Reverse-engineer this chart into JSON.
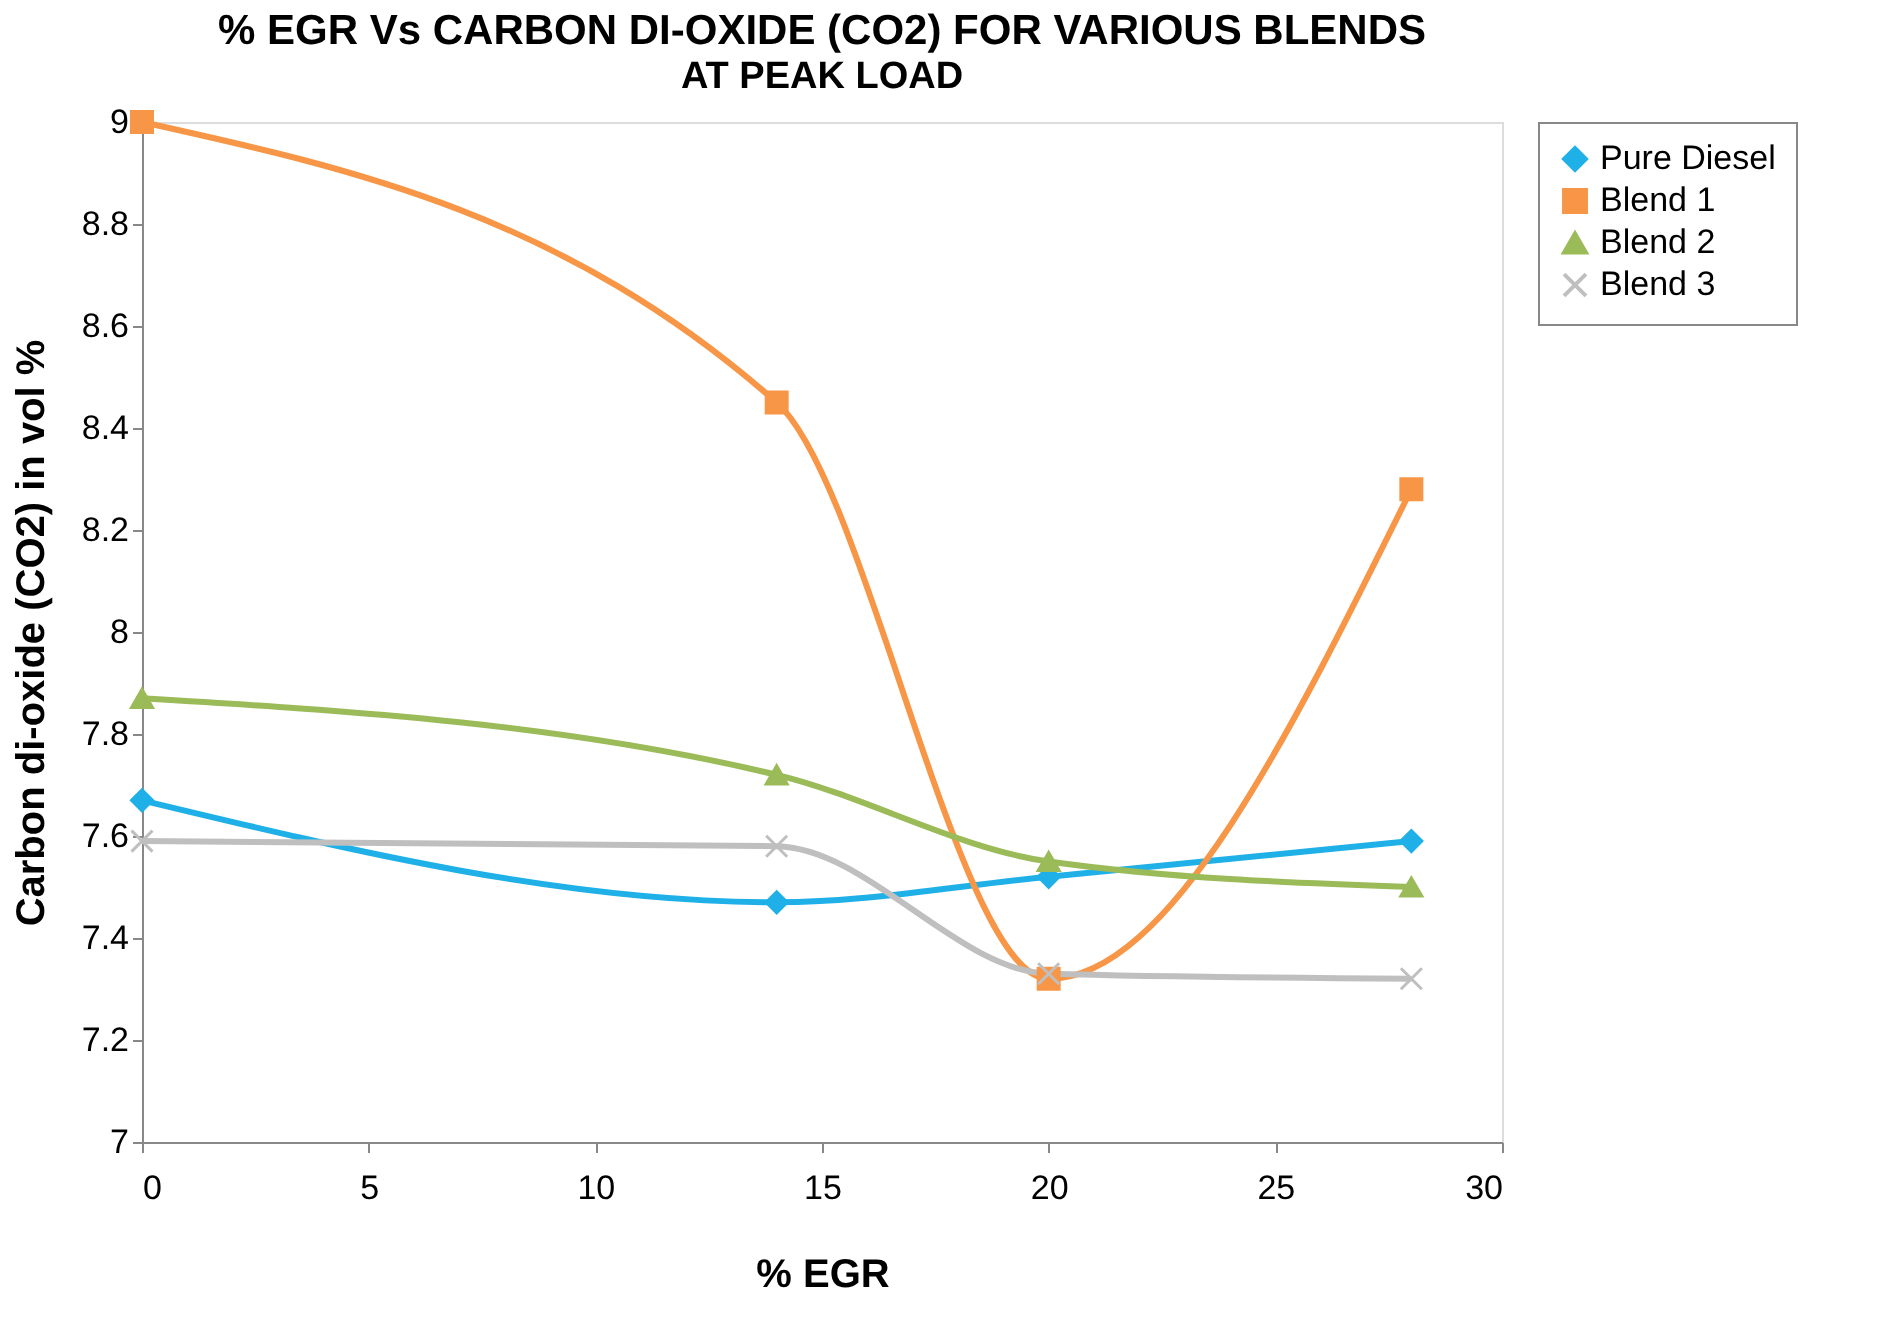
{
  "chart_data": {
    "type": "line",
    "title": "% EGR Vs CARBON DI-OXIDE (CO2) FOR VARIOUS BLENDS",
    "subtitle": "AT PEAK LOAD",
    "xlabel": "% EGR",
    "ylabel": "Carbon di-oxide (CO2) in vol %",
    "x": [
      0,
      14,
      20,
      28
    ],
    "series": [
      {
        "name": "Pure Diesel",
        "color": "#1fb0e8",
        "marker": "diamond",
        "values": [
          7.67,
          7.47,
          7.52,
          7.59
        ]
      },
      {
        "name": "Blend 1",
        "color": "#f79646",
        "marker": "square",
        "values": [
          9.0,
          8.45,
          7.32,
          8.28
        ]
      },
      {
        "name": "Blend 2",
        "color": "#9bbb59",
        "marker": "triangle",
        "values": [
          7.87,
          7.72,
          7.55,
          7.5
        ]
      },
      {
        "name": "Blend 3",
        "color": "#bfbfbf",
        "marker": "cross",
        "values": [
          7.59,
          7.58,
          7.33,
          7.32
        ]
      }
    ],
    "xlim": [
      0,
      30
    ],
    "xticks": [
      0,
      5,
      10,
      15,
      20,
      25,
      30
    ],
    "ylim": [
      7,
      9
    ],
    "yticks": [
      7,
      7.2,
      7.4,
      7.6,
      7.8,
      8,
      8.2,
      8.4,
      8.6,
      8.8,
      9
    ],
    "grid": false,
    "legend": "right"
  }
}
